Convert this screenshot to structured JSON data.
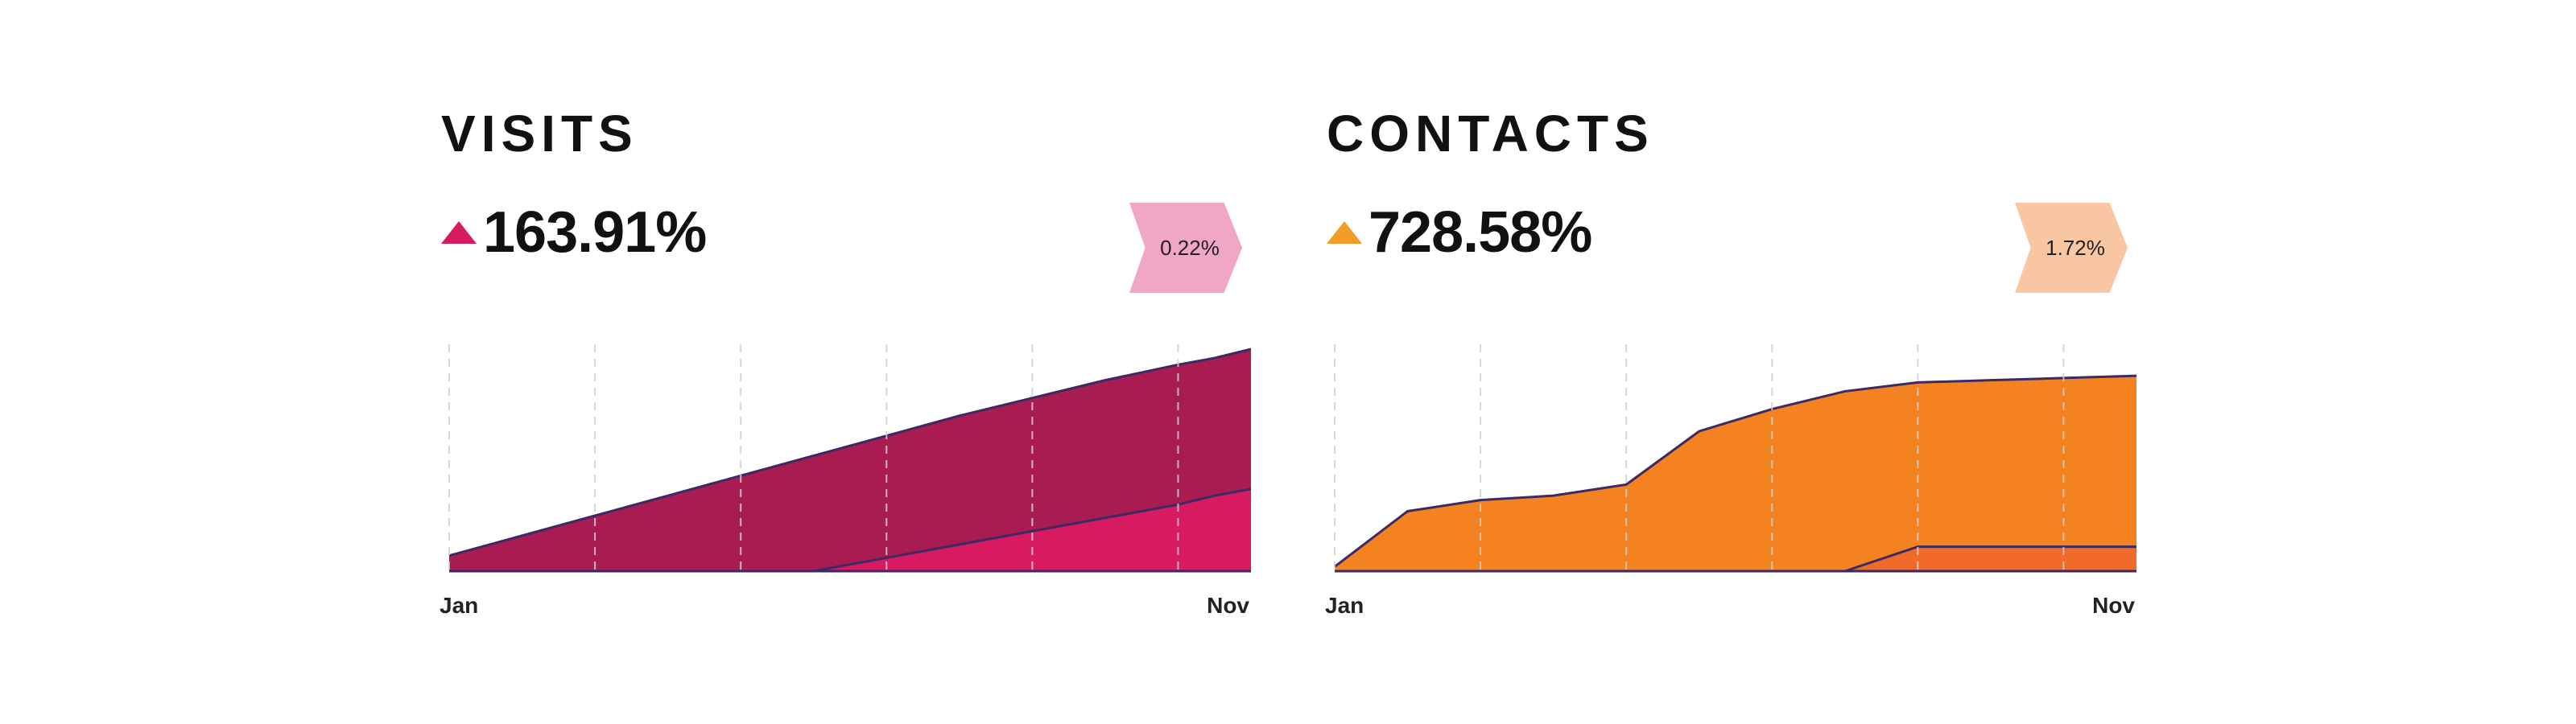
{
  "colors": {
    "visits_arrow": "#d81b60",
    "visits_badge": "#f0a6c4",
    "visits_main_fill": "#a81c52",
    "visits_secondary_fill": "#d81b60",
    "contacts_arrow": "#f39c27",
    "contacts_badge": "#f9c6a4",
    "contacts_main_fill": "#f58220",
    "contacts_secondary_fill": "#f26a2a",
    "line": "#3b2a63",
    "grid": "#cfcfcf"
  },
  "panels": [
    {
      "title": "VISITS",
      "value": "163.91%",
      "badge": "0.22%",
      "arrow_icon": "triangle-up-icon"
    },
    {
      "title": "CONTACTS",
      "value": "728.58%",
      "badge": "1.72%",
      "arrow_icon": "triangle-up-icon"
    }
  ],
  "chart_data": [
    {
      "type": "area",
      "title": "VISITS",
      "x_tick_labels": [
        "Jan",
        "Nov"
      ],
      "x": [
        0,
        0.5,
        1,
        1.5,
        2,
        2.5,
        3,
        3.5,
        4,
        4.5,
        5,
        5.25,
        5.5
      ],
      "ylim": [
        0,
        100
      ],
      "grid": true,
      "series": [
        {
          "values": [
            7,
            16,
            25,
            34,
            43,
            52,
            61,
            70,
            78,
            86,
            93,
            96,
            100
          ]
        },
        {
          "values": [
            null,
            null,
            null,
            null,
            null,
            0,
            6,
            12,
            18,
            24,
            30,
            34,
            37
          ]
        }
      ]
    },
    {
      "type": "area",
      "title": "CONTACTS",
      "x_tick_labels": [
        "Jan",
        "Nov"
      ],
      "x": [
        0,
        0.5,
        1,
        1.5,
        2,
        2.5,
        3,
        3.5,
        4,
        4.5,
        5,
        5.5
      ],
      "ylim": [
        0,
        100
      ],
      "grid": true,
      "series": [
        {
          "values": [
            2,
            27,
            32,
            34,
            39,
            63,
            73,
            81,
            85,
            86,
            87,
            88
          ]
        },
        {
          "values": [
            null,
            null,
            null,
            null,
            null,
            null,
            null,
            0,
            11,
            11,
            11,
            11
          ]
        }
      ]
    }
  ]
}
